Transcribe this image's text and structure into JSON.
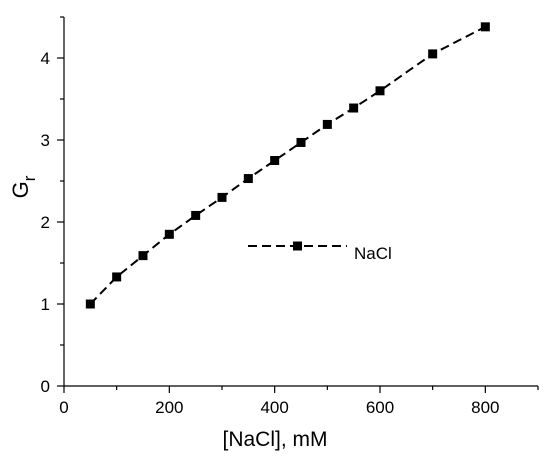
{
  "chart_data": {
    "type": "line",
    "xlabel": "[NaCl], mM",
    "ylabel": "G",
    "ylabel_subscript": "r",
    "xlim": [
      0,
      900
    ],
    "ylim": [
      0,
      4.5
    ],
    "x_ticks": [
      0,
      200,
      400,
      600,
      800
    ],
    "y_ticks": [
      0,
      1,
      2,
      3,
      4
    ],
    "grid": false,
    "legend_position": "center-right",
    "series": [
      {
        "name": "NaCl",
        "line_style": "dashed",
        "marker": "square",
        "color": "#000000",
        "x": [
          50,
          100,
          150,
          200,
          250,
          300,
          350,
          400,
          450,
          500,
          550,
          600,
          700,
          800
        ],
        "y": [
          1.0,
          1.33,
          1.59,
          1.85,
          2.08,
          2.3,
          2.53,
          2.75,
          2.97,
          3.19,
          3.39,
          3.6,
          4.05,
          4.38
        ]
      }
    ]
  }
}
